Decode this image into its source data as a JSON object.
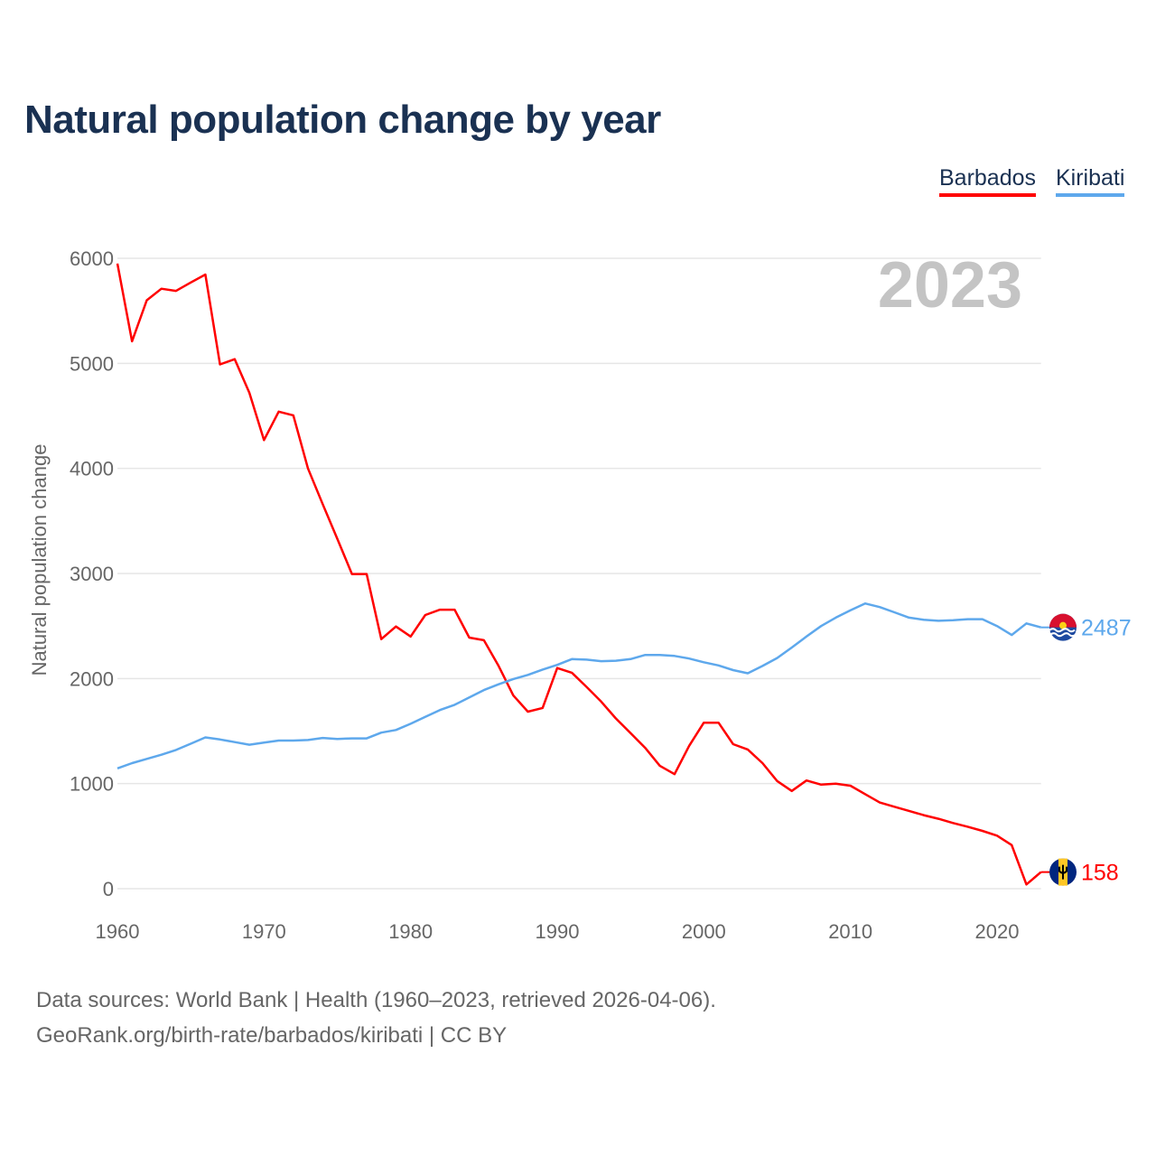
{
  "title": "Natural population change by year",
  "year_watermark": "2023",
  "legend": [
    {
      "name": "Barbados",
      "color": "#ff0000"
    },
    {
      "name": "Kiribati",
      "color": "#5ea8ec"
    }
  ],
  "source_line1": "Data sources: World Bank | Health (1960–2023, retrieved 2026-04-06).",
  "source_line2": "GeoRank.org/birth-rate/barbados/kiribati | CC BY",
  "chart_data": {
    "type": "line",
    "title": "Natural population change by year",
    "xlabel": "",
    "ylabel": "Natural population change",
    "xlim": [
      1960,
      2023
    ],
    "ylim": [
      0,
      6000
    ],
    "xticks": [
      1960,
      1970,
      1980,
      1990,
      2000,
      2010,
      2020
    ],
    "yticks": [
      0,
      1000,
      2000,
      3000,
      4000,
      5000,
      6000
    ],
    "grid": true,
    "legend_position": "top-right",
    "x_start": 1960,
    "series": [
      {
        "name": "Barbados",
        "color": "#ff0000",
        "end_label": "158",
        "flag": "barbados-flag",
        "values": [
          5950,
          5210,
          5600,
          5710,
          5690,
          5770,
          5845,
          4990,
          5040,
          4720,
          4270,
          4540,
          4505,
          4000,
          3660,
          3330,
          2995,
          2995,
          2375,
          2495,
          2400,
          2605,
          2655,
          2655,
          2390,
          2365,
          2120,
          1840,
          1685,
          1720,
          2100,
          2055,
          1920,
          1780,
          1620,
          1480,
          1340,
          1170,
          1090,
          1360,
          1580,
          1580,
          1375,
          1325,
          1195,
          1025,
          930,
          1030,
          990,
          1000,
          980,
          900,
          820,
          780,
          740,
          700,
          665,
          625,
          590,
          550,
          505,
          415,
          40,
          158
        ]
      },
      {
        "name": "Kiribati",
        "color": "#5ea8ec",
        "end_label": "2487",
        "flag": "kiribati-flag",
        "values": [
          1145,
          1195,
          1235,
          1275,
          1320,
          1380,
          1440,
          1420,
          1395,
          1370,
          1390,
          1410,
          1410,
          1415,
          1435,
          1425,
          1430,
          1430,
          1485,
          1510,
          1570,
          1635,
          1700,
          1750,
          1820,
          1890,
          1945,
          1995,
          2035,
          2085,
          2130,
          2185,
          2180,
          2165,
          2170,
          2185,
          2225,
          2225,
          2215,
          2190,
          2155,
          2125,
          2080,
          2050,
          2120,
          2195,
          2295,
          2400,
          2500,
          2580,
          2650,
          2715,
          2680,
          2630,
          2580,
          2560,
          2550,
          2555,
          2565,
          2565,
          2500,
          2415,
          2525,
          2487
        ]
      }
    ]
  }
}
